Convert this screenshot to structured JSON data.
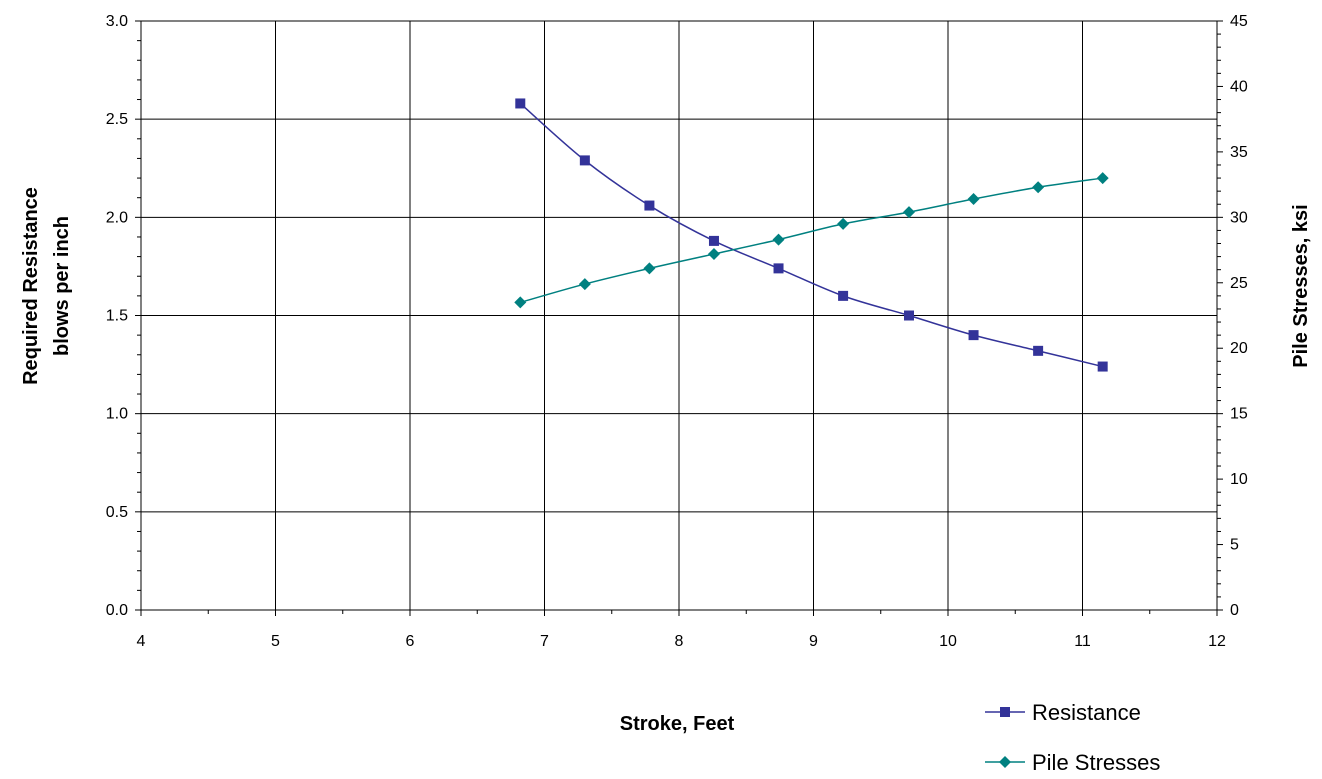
{
  "chart_data": {
    "type": "line",
    "title": "",
    "xlabel": "Stroke, Feet",
    "ylabel_lines": [
      "Required Resistance",
      "blows per inch"
    ],
    "y2label": "Pile Stresses, ksi",
    "xlim": [
      4,
      12
    ],
    "ylim": [
      0,
      3
    ],
    "y2lim": [
      0,
      45
    ],
    "x_ticks": [
      "4",
      "5",
      "6",
      "7",
      "8",
      "9",
      "10",
      "11",
      "12"
    ],
    "y_ticks": [
      "0.0",
      "0.5",
      "1.0",
      "1.5",
      "2.0",
      "2.5",
      "3.0"
    ],
    "y2_ticks": [
      "0",
      "5",
      "10",
      "15",
      "20",
      "25",
      "30",
      "35",
      "40",
      "45"
    ],
    "grid": true,
    "legend_position": "bottom-right",
    "series": [
      {
        "name": "Resistance",
        "axis": "left",
        "color": "#333399",
        "marker": "square",
        "x": [
          6.82,
          7.3,
          7.78,
          8.26,
          8.74,
          9.22,
          9.71,
          10.19,
          10.67,
          11.15
        ],
        "y": [
          2.58,
          2.29,
          2.06,
          1.88,
          1.74,
          1.6,
          1.5,
          1.4,
          1.32,
          1.24
        ]
      },
      {
        "name": "Pile Stresses",
        "axis": "right",
        "color": "#008080",
        "marker": "diamond",
        "x": [
          6.82,
          7.3,
          7.78,
          8.26,
          8.74,
          9.22,
          9.71,
          10.19,
          10.67,
          11.15
        ],
        "y": [
          23.5,
          24.9,
          26.1,
          27.2,
          28.3,
          29.5,
          30.4,
          31.4,
          32.3,
          33.0
        ]
      }
    ]
  }
}
